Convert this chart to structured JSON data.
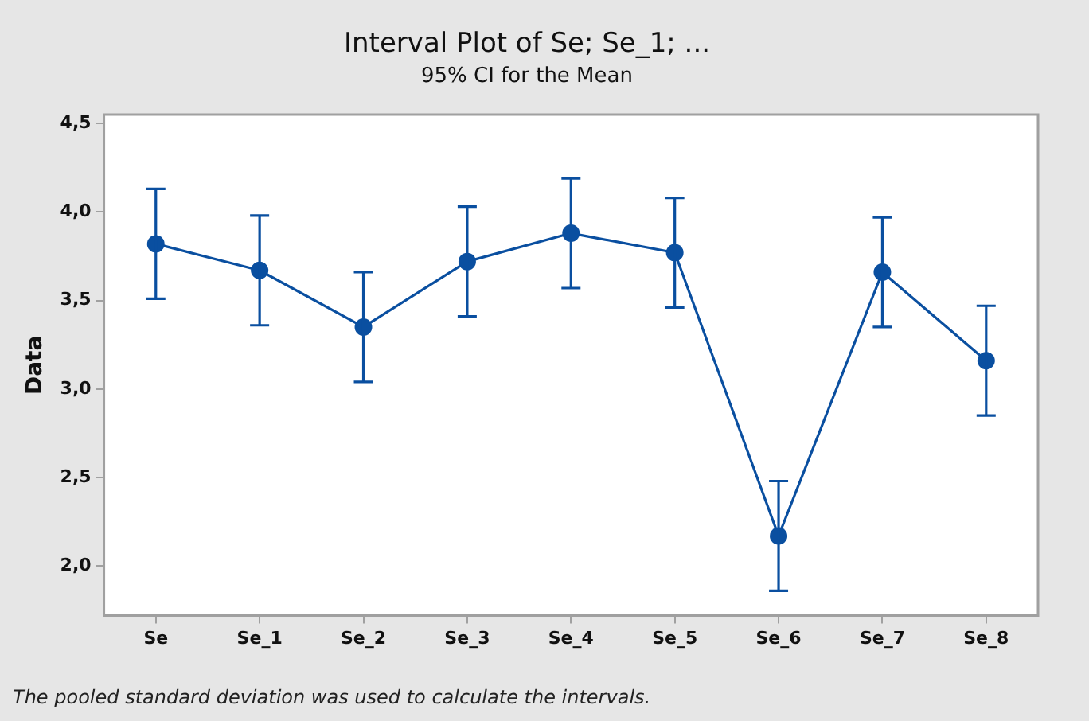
{
  "chart_data": {
    "type": "line",
    "title": "Interval Plot of Se; Se_1; ...",
    "subtitle": "95% CI for the Mean",
    "ylabel": "Data",
    "categories": [
      "Se",
      "Se_1",
      "Se_2",
      "Se_3",
      "Se_4",
      "Se_5",
      "Se_6",
      "Se_7",
      "Se_8"
    ],
    "series": [
      {
        "color": "#0a4fa0",
        "values": [
          3.82,
          3.67,
          3.35,
          3.72,
          3.88,
          3.77,
          2.17,
          3.66,
          3.16
        ],
        "errors": [
          0.31,
          0.31,
          0.31,
          0.31,
          0.31,
          0.31,
          0.31,
          0.31,
          0.31
        ]
      }
    ],
    "ylim": [
      1.72,
      4.55
    ],
    "yticks": [
      {
        "value": 2.0,
        "label": "2,0"
      },
      {
        "value": 2.5,
        "label": "2,5"
      },
      {
        "value": 3.0,
        "label": "3,0"
      },
      {
        "value": 3.5,
        "label": "3,5"
      },
      {
        "value": 4.0,
        "label": "4,0"
      },
      {
        "value": 4.5,
        "label": "4,5"
      }
    ],
    "marker": "circle",
    "line_style": "solid",
    "grid": false,
    "legend": false,
    "annotations": [
      "The pooled standard deviation was used to calculate the intervals."
    ]
  }
}
